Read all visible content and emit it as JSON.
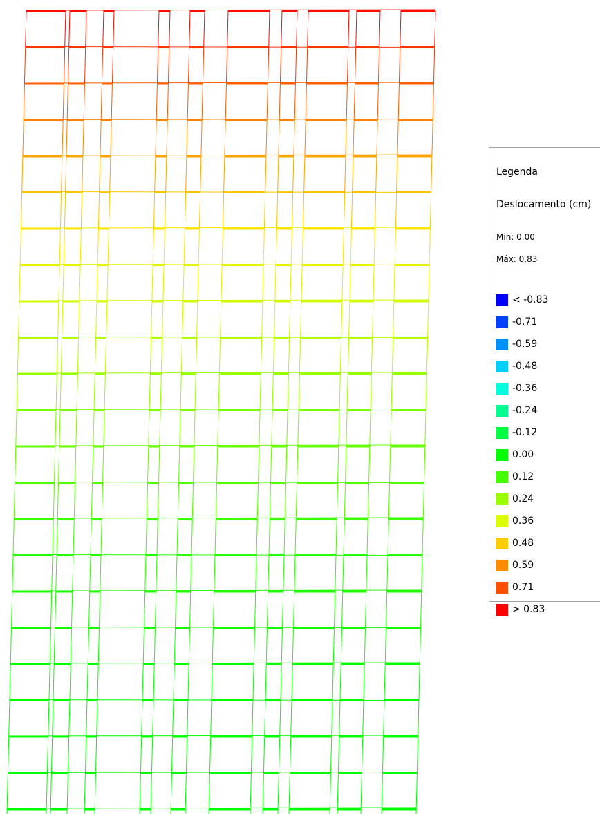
{
  "legend": {
    "title": "Legenda",
    "quantity": "Deslocamento (cm)",
    "min": "Min: 0.00",
    "max": "Máx: 0.83",
    "items": [
      {
        "label": "< -0.83",
        "color": "#0000ff"
      },
      {
        "label": "-0.71",
        "color": "#0040ff"
      },
      {
        "label": "-0.59",
        "color": "#0090ff"
      },
      {
        "label": "-0.48",
        "color": "#00d0ff"
      },
      {
        "label": "-0.36",
        "color": "#00ffdd"
      },
      {
        "label": "-0.24",
        "color": "#00ff90"
      },
      {
        "label": "-0.12",
        "color": "#00ff40"
      },
      {
        "label": "0.00",
        "color": "#00ff00"
      },
      {
        "label": "0.12",
        "color": "#44ff00"
      },
      {
        "label": "0.24",
        "color": "#99ff00"
      },
      {
        "label": "0.36",
        "color": "#ddff00"
      },
      {
        "label": "0.48",
        "color": "#ffcc00"
      },
      {
        "label": "0.59",
        "color": "#ff8c00"
      },
      {
        "label": "0.71",
        "color": "#ff5000"
      },
      {
        "label": "> 0.83",
        "color": "#ff0000"
      }
    ]
  }
}
